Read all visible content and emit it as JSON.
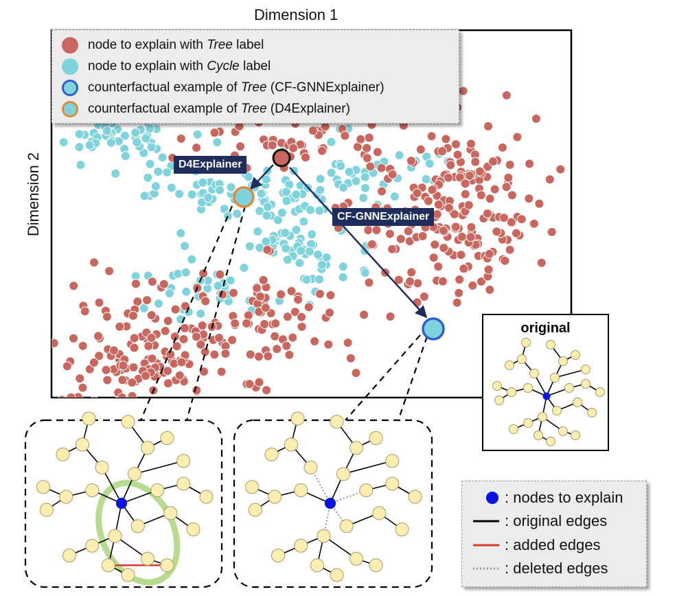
{
  "axes": {
    "x_label": "Dimension 1",
    "y_label": "Dimension 2"
  },
  "legend": {
    "items": [
      {
        "pre": "node to explain with ",
        "em": "Tree",
        "post": " label",
        "fill": "#c9665e",
        "stroke": "#c9665e"
      },
      {
        "pre": "node to explain with ",
        "em": "Cycle",
        "post": " label",
        "fill": "#7fd3dc",
        "stroke": "#7fd3dc"
      },
      {
        "pre": "counterfactual example of ",
        "em": "Tree",
        "post": " (CF-GNNExplainer)",
        "fill": "#7fd3dc",
        "stroke": "#2f5fcf"
      },
      {
        "pre": "counterfactual example of ",
        "em": "Tree",
        "post": " (D4Explainer)",
        "fill": "#7fd3dc",
        "stroke": "#e08a3c"
      }
    ]
  },
  "tags": {
    "d4": "D4Explainer",
    "cf": "CF-GNNExplainer"
  },
  "original": {
    "title": "original"
  },
  "key": {
    "nodes": ": nodes to explain",
    "original_edges": ": original edges",
    "added_edges": ": added edges",
    "deleted_edges": ": deleted edges"
  },
  "colors": {
    "tree": "#c9665e",
    "cycle": "#7fd3dc",
    "graph_node": "#fbeeb0",
    "graph_node_stroke": "#a69a6a",
    "center_node": "#0a14e0",
    "added_edge": "#d93a2b",
    "highlight": "#9fcf6a",
    "tag_bg": "#1f2d5c"
  }
}
